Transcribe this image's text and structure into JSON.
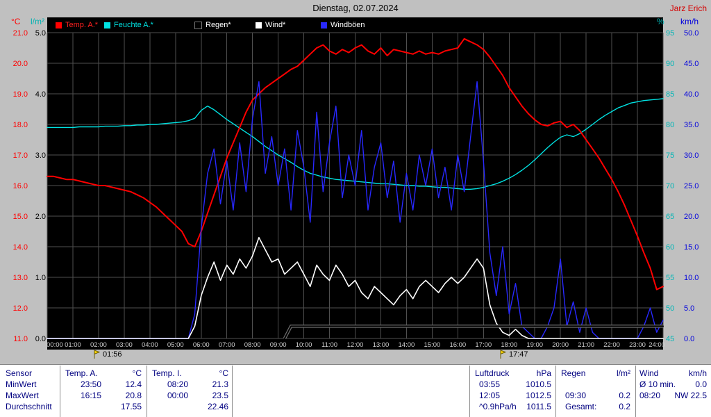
{
  "header": {
    "title": "Dienstag, 02.07.2024",
    "user": "Jarz Erich"
  },
  "legend": {
    "items": [
      {
        "label": "Temp. A.*",
        "color": "#ff0000",
        "label_color": "#ff2020"
      },
      {
        "label": "Feuchte A.*",
        "color": "#00e2e2",
        "label_color": "#00e2e2"
      },
      {
        "label": "Regen*",
        "color": "#000000",
        "label_color": "#ffffff",
        "swatch_border": "#777777"
      },
      {
        "label": "Wind*",
        "color": "#ffffff",
        "label_color": "#ffffff"
      },
      {
        "label": "Windböen",
        "color": "#2828ff",
        "label_color": "#ffffff"
      }
    ]
  },
  "colors": {
    "background": "#c0c0c0",
    "plot_background": "#000000",
    "grid": "#4f4f4f",
    "x_tick_text": "#d0d0d0"
  },
  "chart_data": {
    "type": "line",
    "title": "Dienstag, 02.07.2024",
    "x_start_hours": 0,
    "x_step_hours": 0.25,
    "x_tick_labels": [
      "00:00",
      "01:00",
      "02:00",
      "03:00",
      "04:00",
      "05:00",
      "06:00",
      "07:00",
      "08:00",
      "09:00",
      "10:00",
      "11:00",
      "12:00",
      "13:00",
      "14:00",
      "15:00",
      "16:00",
      "17:00",
      "18:00",
      "19:00",
      "20:00",
      "21:00",
      "22:00",
      "23:00",
      "24:00"
    ],
    "axes": {
      "temp": {
        "unit": "°C",
        "color": "#ff0000",
        "range": [
          11,
          21
        ],
        "ticks": [
          "21.0",
          "20.0",
          "19.0",
          "18.0",
          "17.0",
          "16.0",
          "15.0",
          "14.0",
          "13.0",
          "12.0",
          "11.0"
        ]
      },
      "rain": {
        "unit": "l/m²",
        "color": "#000000",
        "unit_color": "#00b2b2",
        "range": [
          0,
          5
        ],
        "ticks": [
          "5.0",
          "4.0",
          "3.0",
          "2.0",
          "1.0",
          "0.0"
        ]
      },
      "humidity": {
        "unit": "%",
        "color": "#00b6b6",
        "range": [
          45,
          95
        ],
        "ticks": [
          "95",
          "90",
          "85",
          "80",
          "75",
          "70",
          "65",
          "60",
          "55",
          "50",
          "45"
        ]
      },
      "wind": {
        "unit": "km/h",
        "color": "#0000dd",
        "range": [
          0,
          50
        ],
        "ticks": [
          "50.0",
          "45.0",
          "40.0",
          "35.0",
          "30.0",
          "25.0",
          "20.0",
          "15.0",
          "10.0",
          "5.0",
          "0.0"
        ]
      }
    },
    "series": [
      {
        "name": "Temp. A.",
        "axis": "temp",
        "color": "#ff0000",
        "width": 2,
        "values": [
          16.3,
          16.3,
          16.25,
          16.2,
          16.2,
          16.15,
          16.1,
          16.05,
          16.0,
          16.0,
          15.95,
          15.9,
          15.85,
          15.8,
          15.7,
          15.6,
          15.45,
          15.3,
          15.1,
          14.9,
          14.7,
          14.5,
          14.1,
          14.0,
          14.5,
          15.1,
          15.7,
          16.3,
          16.9,
          17.4,
          17.9,
          18.4,
          18.8,
          19.0,
          19.2,
          19.35,
          19.5,
          19.65,
          19.8,
          19.9,
          20.1,
          20.3,
          20.5,
          20.6,
          20.4,
          20.3,
          20.45,
          20.35,
          20.5,
          20.6,
          20.4,
          20.3,
          20.5,
          20.25,
          20.45,
          20.4,
          20.35,
          20.3,
          20.4,
          20.3,
          20.35,
          20.3,
          20.4,
          20.45,
          20.5,
          20.8,
          20.7,
          20.6,
          20.45,
          20.2,
          19.9,
          19.6,
          19.2,
          18.9,
          18.6,
          18.35,
          18.15,
          18.0,
          17.95,
          18.05,
          18.1,
          17.9,
          18.0,
          17.8,
          17.5,
          17.2,
          16.9,
          16.55,
          16.2,
          15.8,
          15.35,
          14.85,
          14.35,
          13.8,
          13.3,
          12.6,
          12.7
        ]
      },
      {
        "name": "Feuchte A.",
        "axis": "humidity",
        "color": "#00e2e2",
        "width": 1.4,
        "values": [
          79.5,
          79.5,
          79.5,
          79.5,
          79.5,
          79.6,
          79.6,
          79.6,
          79.6,
          79.7,
          79.7,
          79.7,
          79.8,
          79.8,
          79.9,
          79.9,
          80.0,
          80.0,
          80.1,
          80.2,
          80.3,
          80.4,
          80.6,
          81.0,
          82.3,
          83.0,
          82.4,
          81.6,
          80.8,
          80.1,
          79.4,
          78.7,
          78.0,
          77.2,
          76.4,
          75.7,
          75.0,
          74.4,
          73.8,
          73.1,
          72.5,
          72.0,
          71.7,
          71.4,
          71.2,
          71.0,
          70.9,
          70.8,
          70.7,
          70.6,
          70.5,
          70.4,
          70.3,
          70.3,
          70.2,
          70.1,
          70.0,
          70.0,
          69.9,
          69.9,
          69.8,
          69.7,
          69.7,
          69.6,
          69.5,
          69.4,
          69.4,
          69.5,
          69.7,
          70.0,
          70.3,
          70.7,
          71.2,
          71.8,
          72.5,
          73.3,
          74.2,
          75.2,
          76.2,
          77.1,
          77.9,
          78.3,
          78.0,
          78.5,
          79.2,
          80.0,
          80.8,
          81.5,
          82.1,
          82.7,
          83.1,
          83.5,
          83.7,
          83.9,
          84.0,
          84.1,
          84.2
        ]
      },
      {
        "name": "Regen",
        "axis": "rain",
        "color": "#000000",
        "halo": "#6e6e6e",
        "width": 2,
        "x_start_hours": 9.25,
        "values": [
          0,
          0.2,
          0.2,
          0.2,
          0.2,
          0.2,
          0.2,
          0.2,
          0.2,
          0.2,
          0.2,
          0.2,
          0.2,
          0.2,
          0.2,
          0.2,
          0.2,
          0.2,
          0.2,
          0.2,
          0.2,
          0.2,
          0.2,
          0.2,
          0.2,
          0.2,
          0.2,
          0.2,
          0.2,
          0.2,
          0.2,
          0.2,
          0.2,
          0.2,
          0.2,
          0.2,
          0.2,
          0.2,
          0.2,
          0.2,
          0.2,
          0.2,
          0.2,
          0.2,
          0.2,
          0.2,
          0.2,
          0.2,
          0.2,
          0.2,
          0.2,
          0.2,
          0.2,
          0.2,
          0.2,
          0.2,
          0.2,
          0.2,
          0.2,
          0.2
        ]
      },
      {
        "name": "Wind",
        "axis": "wind",
        "color": "#ffffff",
        "width": 1.6,
        "values": [
          0,
          0,
          0,
          0,
          0,
          0,
          0,
          0,
          0,
          0,
          0,
          0,
          0,
          0,
          0,
          0,
          0,
          0,
          0,
          0,
          0,
          0,
          0,
          2,
          7,
          10,
          12.5,
          9.5,
          12,
          10.5,
          13,
          11.5,
          13.5,
          16.5,
          14.5,
          12.5,
          13,
          10.5,
          11.5,
          12.5,
          10.5,
          8.5,
          12,
          10.5,
          9.5,
          12,
          10.5,
          8.5,
          9.5,
          7.5,
          6.5,
          8.5,
          7.5,
          6.5,
          5.5,
          7,
          8,
          6.5,
          8.5,
          9.5,
          8.5,
          7.5,
          9,
          10,
          9,
          10,
          11.5,
          13,
          11.5,
          5.5,
          2.5,
          1,
          0.5,
          1.5,
          0.5,
          0,
          0,
          0,
          0,
          0,
          0,
          0,
          0,
          0,
          0,
          0,
          0,
          0,
          0,
          0,
          0,
          0,
          0,
          0,
          0,
          0,
          0
        ]
      },
      {
        "name": "Windböen",
        "axis": "wind",
        "color": "#2828ff",
        "width": 1.4,
        "values": [
          0,
          0,
          0,
          0,
          0,
          0,
          0,
          0,
          0,
          0,
          0,
          0,
          0,
          0,
          0,
          0,
          0,
          0,
          0,
          0,
          0,
          0,
          0,
          4,
          18,
          27,
          31,
          22,
          29,
          21,
          32,
          24,
          36,
          42,
          27,
          33,
          25,
          31,
          21,
          34,
          28,
          19,
          37,
          24,
          32,
          38,
          23,
          30,
          25,
          34,
          21,
          28,
          32,
          23,
          29,
          19,
          27,
          21,
          30,
          25,
          31,
          23,
          28,
          21,
          30,
          24,
          33,
          42,
          29,
          14,
          7,
          15,
          4,
          9,
          2,
          1,
          0,
          0,
          2,
          5,
          13,
          2,
          6,
          1,
          5,
          1,
          0,
          0,
          0,
          0,
          0,
          0,
          0,
          2,
          5,
          1,
          3
        ]
      }
    ],
    "markers": [
      {
        "label": "01:56",
        "hours": 1.933
      },
      {
        "label": "17:47",
        "hours": 17.783
      }
    ]
  },
  "table": {
    "row_headers": [
      "Sensor",
      "MinWert",
      "MaxWert",
      "Durchschnitt"
    ],
    "columns": [
      {
        "name": "Temp. A.",
        "unit": "°C",
        "rows": [
          [
            "23:50",
            "12.4"
          ],
          [
            "16:15",
            "20.8"
          ],
          [
            "",
            "17.55"
          ]
        ]
      },
      {
        "name": "Temp. I.",
        "unit": "°C",
        "rows": [
          [
            "08:20",
            "21.3"
          ],
          [
            "00:00",
            "23.5"
          ],
          [
            "",
            "22.46"
          ]
        ]
      },
      {
        "name": "Luftdruck",
        "unit": "hPa",
        "rows": [
          [
            "03:55",
            "1010.5"
          ],
          [
            "12:05",
            "1012.5"
          ],
          [
            "^0.9hPa/h",
            "1011.5"
          ]
        ]
      },
      {
        "name": "Regen",
        "unit": "l/m²",
        "rows": [
          [
            "",
            ""
          ],
          [
            "09:30",
            "0.2"
          ],
          [
            "Gesamt:",
            "0.2"
          ]
        ]
      },
      {
        "name": "Wind",
        "unit": "km/h",
        "rows": [
          [
            "Ø 10 min.",
            "0.0"
          ],
          [
            "08:20",
            "NW 22.5"
          ],
          [
            "",
            ""
          ]
        ]
      }
    ]
  }
}
